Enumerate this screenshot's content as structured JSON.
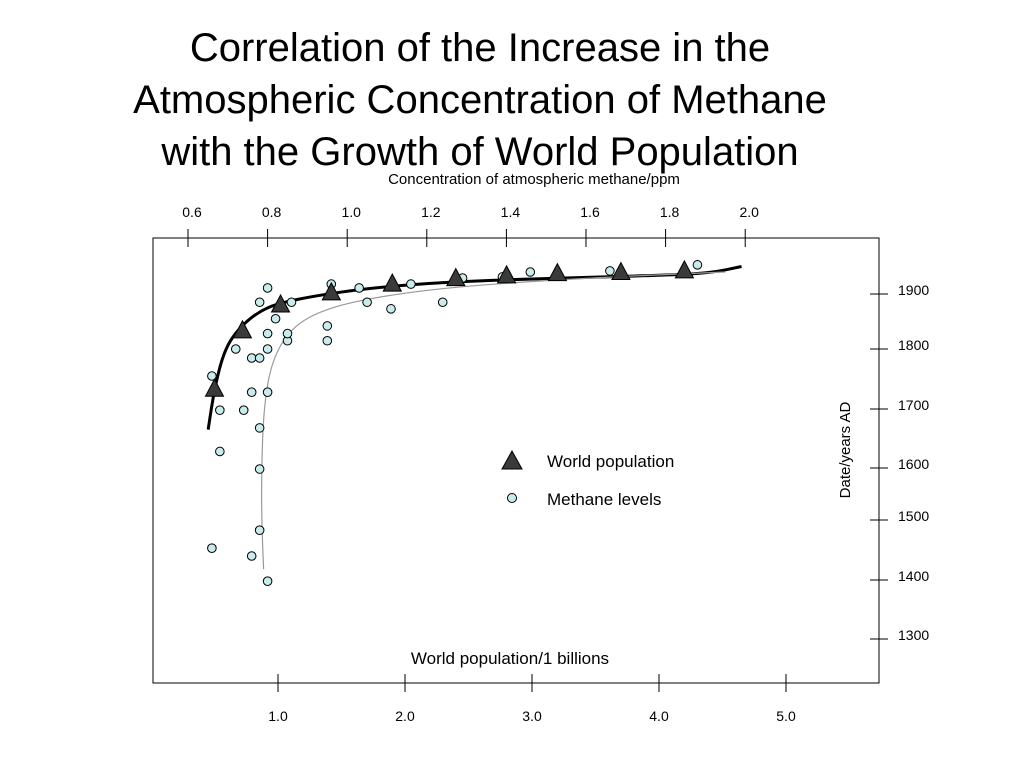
{
  "slide": {
    "title_lines": [
      "Correlation of the Increase in the",
      "Atmospheric Concentration of Methane",
      "with the Growth of World Population"
    ]
  },
  "chart_data": {
    "type": "scatter",
    "title": "",
    "top_axis": {
      "label": "Concentration of atmospheric methane/ppm",
      "ticks": [
        0.6,
        0.8,
        1.0,
        1.2,
        1.4,
        1.6,
        1.8,
        2.0
      ],
      "tick_labels": [
        "0.6",
        "0.8",
        "1.0",
        "1.2",
        "1.4",
        "1.6",
        "1.8",
        "2.0"
      ]
    },
    "bottom_axis": {
      "label": "World population/1 billions",
      "ticks": [
        1.0,
        2.0,
        3.0,
        4.0,
        5.0
      ],
      "tick_labels": [
        "1.0",
        "2.0",
        "3.0",
        "4.0",
        "5.0"
      ]
    },
    "right_axis": {
      "label": "Date/years AD",
      "ticks": [
        1900,
        1800,
        1700,
        1600,
        1500,
        1400,
        1300
      ],
      "tick_labels": [
        "1900",
        "1800",
        "1700",
        "1600",
        "1500",
        "1400",
        "1300"
      ]
    },
    "legend": {
      "position": "center-right",
      "entries": [
        {
          "label": "World population",
          "marker": "triangle",
          "color": "#3a3a3a"
        },
        {
          "label": "Methane levels",
          "marker": "circle",
          "color": "#c8ecec"
        }
      ]
    },
    "series": [
      {
        "name": "World population",
        "marker": "triangle",
        "color": "#3a3a3a",
        "points": [
          {
            "population": 0.5,
            "year": 1733
          },
          {
            "population": 0.72,
            "year": 1833
          },
          {
            "population": 1.02,
            "year": 1880
          },
          {
            "population": 1.42,
            "year": 1902
          },
          {
            "population": 1.9,
            "year": 1918
          },
          {
            "population": 2.4,
            "year": 1928
          },
          {
            "population": 2.8,
            "year": 1933
          },
          {
            "population": 3.2,
            "year": 1937
          },
          {
            "population": 3.7,
            "year": 1939
          },
          {
            "population": 4.2,
            "year": 1942
          }
        ]
      },
      {
        "name": "Methane levels",
        "marker": "circle",
        "color": "#c8ecec",
        "points": [
          {
            "methane": 0.66,
            "year": 1453
          },
          {
            "methane": 0.66,
            "year": 1755
          },
          {
            "methane": 0.68,
            "year": 1628
          },
          {
            "methane": 0.68,
            "year": 1698
          },
          {
            "methane": 0.72,
            "year": 1800
          },
          {
            "methane": 0.74,
            "year": 1698
          },
          {
            "methane": 0.76,
            "year": 1440
          },
          {
            "methane": 0.76,
            "year": 1728
          },
          {
            "methane": 0.76,
            "year": 1785
          },
          {
            "methane": 0.78,
            "year": 1483
          },
          {
            "methane": 0.78,
            "year": 1598
          },
          {
            "methane": 0.78,
            "year": 1668
          },
          {
            "methane": 0.78,
            "year": 1785
          },
          {
            "methane": 0.78,
            "year": 1885
          },
          {
            "methane": 0.8,
            "year": 1398
          },
          {
            "methane": 0.8,
            "year": 1728
          },
          {
            "methane": 0.8,
            "year": 1800
          },
          {
            "methane": 0.8,
            "year": 1828
          },
          {
            "methane": 0.8,
            "year": 1911
          },
          {
            "methane": 0.82,
            "year": 1855
          },
          {
            "methane": 0.85,
            "year": 1815
          },
          {
            "methane": 0.85,
            "year": 1828
          },
          {
            "methane": 0.86,
            "year": 1885
          },
          {
            "methane": 0.95,
            "year": 1815
          },
          {
            "methane": 0.95,
            "year": 1842
          },
          {
            "methane": 0.96,
            "year": 1918
          },
          {
            "methane": 1.03,
            "year": 1911
          },
          {
            "methane": 1.05,
            "year": 1885
          },
          {
            "methane": 1.11,
            "year": 1873
          },
          {
            "methane": 1.16,
            "year": 1918
          },
          {
            "methane": 1.24,
            "year": 1885
          },
          {
            "methane": 1.29,
            "year": 1929
          },
          {
            "methane": 1.39,
            "year": 1931
          },
          {
            "methane": 1.46,
            "year": 1940
          },
          {
            "methane": 1.66,
            "year": 1942
          },
          {
            "methane": 1.88,
            "year": 1953
          }
        ]
      }
    ],
    "fit_lines": [
      {
        "series": "World population",
        "points": [
          [
            0.45,
            1665
          ],
          [
            0.5,
            1735
          ],
          [
            0.58,
            1800
          ],
          [
            0.7,
            1840
          ],
          [
            0.85,
            1868
          ],
          [
            1.0,
            1883
          ],
          [
            1.3,
            1897
          ],
          [
            1.7,
            1910
          ],
          [
            2.2,
            1920
          ],
          [
            2.8,
            1926
          ],
          [
            3.4,
            1930
          ],
          [
            4.0,
            1934
          ],
          [
            4.4,
            1938
          ],
          [
            4.65,
            1950
          ]
        ]
      },
      {
        "series": "Methane levels",
        "points": [
          [
            0.79,
            1418
          ],
          [
            0.785,
            1500
          ],
          [
            0.785,
            1600
          ],
          [
            0.79,
            1700
          ],
          [
            0.81,
            1780
          ],
          [
            0.86,
            1840
          ],
          [
            0.95,
            1875
          ],
          [
            1.1,
            1898
          ],
          [
            1.3,
            1915
          ],
          [
            1.6,
            1929
          ],
          [
            1.95,
            1940
          ]
        ]
      }
    ]
  }
}
